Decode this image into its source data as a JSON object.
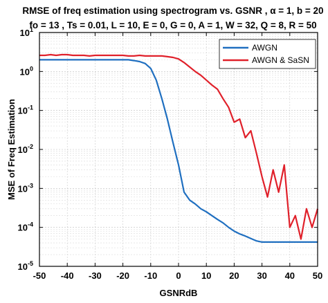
{
  "chart_data": {
    "type": "line",
    "title_line1": "RMSE of freq estimation using spectrogram vs. GSNR , α = 1, b = 20",
    "title_line2": "fo = 13 , Ts = 0.01,   L = 10,   E = 0, G = 0,   A = 1, W = 32, Q = 8, R = 50",
    "xlabel": "GSNRdB",
    "ylabel": "MSE of Freq Estimation",
    "xlim": [
      -50,
      50
    ],
    "ylim": [
      1e-05,
      10
    ],
    "yscale": "log",
    "grid": true,
    "legend_position": "top-right",
    "x_ticks": [
      -50,
      -40,
      -30,
      -20,
      -10,
      0,
      10,
      20,
      30,
      40,
      50
    ],
    "x_tick_labels": [
      "-50",
      "-40",
      "-30",
      "-20",
      "-10",
      "0",
      "10",
      "20",
      "30",
      "40",
      "50"
    ],
    "y_tick_exponents": [
      -5,
      -4,
      -3,
      -2,
      -1,
      0,
      1
    ],
    "colors": {
      "AWGN": "#1f6fc0",
      "AWGN & SaSN": "#e0202a"
    },
    "x": [
      -50,
      -48,
      -46,
      -44,
      -42,
      -40,
      -38,
      -36,
      -34,
      -32,
      -30,
      -28,
      -26,
      -24,
      -22,
      -20,
      -18,
      -16,
      -14,
      -12,
      -10,
      -8,
      -6,
      -4,
      -2,
      0,
      2,
      4,
      6,
      8,
      10,
      12,
      14,
      16,
      18,
      20,
      22,
      24,
      26,
      28,
      30,
      32,
      34,
      36,
      38,
      40,
      42,
      44,
      46,
      48,
      50
    ],
    "series": [
      {
        "name": "AWGN",
        "values": [
          2.0,
          2.0,
          2.0,
          2.0,
          2.0,
          2.0,
          2.0,
          2.0,
          2.0,
          2.0,
          2.0,
          2.0,
          2.0,
          2.0,
          2.0,
          2.0,
          2.0,
          1.9,
          1.8,
          1.6,
          1.2,
          0.6,
          0.2,
          0.06,
          0.015,
          0.004,
          0.0008,
          0.0005,
          0.0004,
          0.0003,
          0.00025,
          0.0002,
          0.00016,
          0.00013,
          0.0001,
          8e-05,
          6.8e-05,
          6e-05,
          5.2e-05,
          4.5e-05,
          4.2e-05,
          4.2e-05,
          4.2e-05,
          4.2e-05,
          4.2e-05,
          4.2e-05,
          4.2e-05,
          4.2e-05,
          4.2e-05,
          4.2e-05,
          4.2e-05
        ]
      },
      {
        "name": "AWGN & SaSN",
        "values": [
          2.6,
          2.6,
          2.7,
          2.6,
          2.7,
          2.7,
          2.6,
          2.6,
          2.6,
          2.5,
          2.6,
          2.6,
          2.6,
          2.6,
          2.6,
          2.6,
          2.5,
          2.5,
          2.6,
          2.5,
          2.5,
          2.5,
          2.5,
          2.4,
          2.3,
          2.1,
          1.7,
          1.3,
          1.0,
          0.8,
          0.6,
          0.45,
          0.35,
          0.2,
          0.12,
          0.05,
          0.06,
          0.02,
          0.03,
          0.008,
          0.002,
          0.0006,
          0.003,
          0.0008,
          0.004,
          0.0001,
          0.0002,
          5e-05,
          0.0003,
          0.0001,
          0.0003
        ]
      }
    ]
  }
}
